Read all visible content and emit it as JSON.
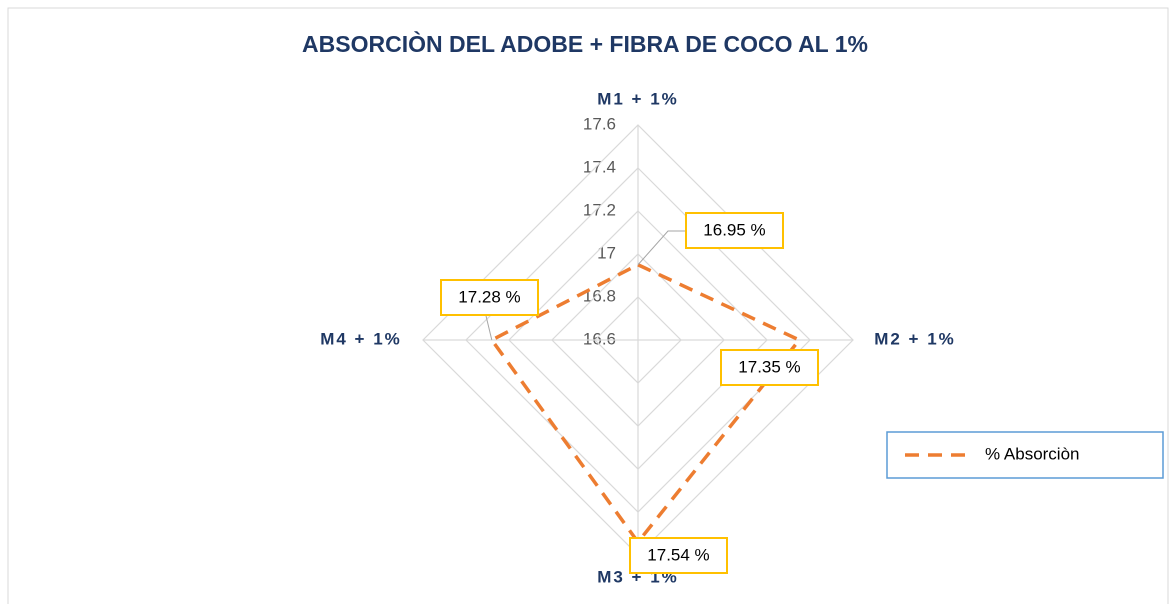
{
  "chart_data": {
    "type": "radar",
    "title": "ABSORCIÒN DEL ADOBE + FIBRA DE COCO AL 1%",
    "categories": [
      "M1 + 1%",
      "M2 + 1%",
      "M3 + 1%",
      "M4 + 1%"
    ],
    "series": [
      {
        "name": "% Absorciòn",
        "color": "#ed7d31",
        "values": [
          16.95,
          17.35,
          17.54,
          17.28
        ],
        "value_labels": [
          "16.95 %",
          "17.35 %",
          "17.54 %",
          "17.28 %"
        ]
      }
    ],
    "ylim": [
      16.6,
      17.6
    ],
    "yticks": [
      16.6,
      16.8,
      17,
      17.2,
      17.4,
      17.6
    ],
    "grid": true,
    "legend": "right"
  }
}
